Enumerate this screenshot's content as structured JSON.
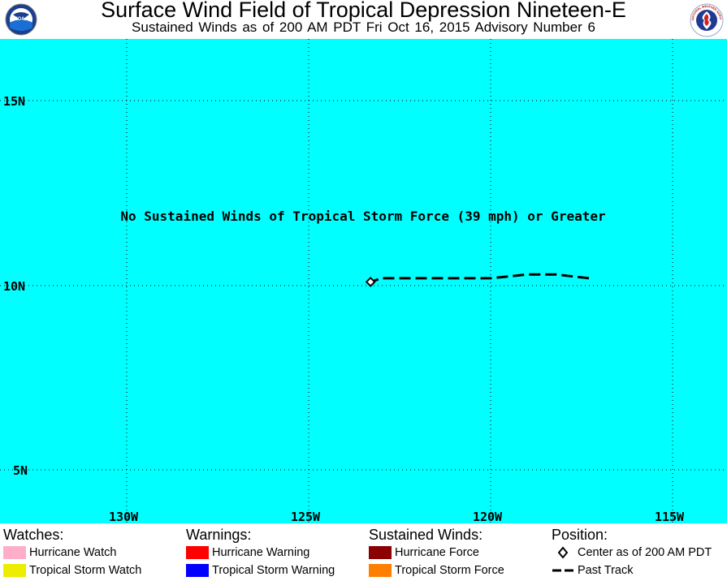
{
  "header": {
    "title": "Surface Wind Field of Tropical Depression Nineteen-E",
    "subtitle": "Sustained Winds as of 200 AM PDT Fri Oct 16, 2015   Advisory Number 6",
    "left_logo_text": "NOAA",
    "right_logo_text": "NATIONAL WEATHER SERVICE"
  },
  "map": {
    "background_color": "#00ffff",
    "latitude_labels": [
      "15N",
      "10N",
      "5N"
    ],
    "longitude_labels": [
      "130W",
      "125W",
      "120W",
      "115W"
    ],
    "notice": "No Sustained Winds of Tropical Storm Force (39 mph) or Greater",
    "storm_center": {
      "lon": -123.3,
      "lat": 10.1
    },
    "past_track": [
      {
        "lon": -117.3,
        "lat": 10.2
      },
      {
        "lon": -118.2,
        "lat": 10.3
      },
      {
        "lon": -119.0,
        "lat": 10.3
      },
      {
        "lon": -120.0,
        "lat": 10.2
      },
      {
        "lon": -121.0,
        "lat": 10.2
      },
      {
        "lon": -122.0,
        "lat": 10.2
      },
      {
        "lon": -123.0,
        "lat": 10.2
      },
      {
        "lon": -123.3,
        "lat": 10.1
      }
    ]
  },
  "legend": {
    "watches": {
      "heading": "Watches:",
      "items": [
        {
          "label": "Hurricane Watch",
          "color": "#ffaec9"
        },
        {
          "label": "Tropical Storm Watch",
          "color": "#eded00"
        }
      ]
    },
    "warnings": {
      "heading": "Warnings:",
      "items": [
        {
          "label": "Hurricane Warning",
          "color": "#ff0000"
        },
        {
          "label": "Tropical Storm Warning",
          "color": "#0000ff"
        }
      ]
    },
    "winds": {
      "heading": "Sustained Winds:",
      "items": [
        {
          "label": "Hurricane Force",
          "color": "#8b0000"
        },
        {
          "label": "Tropical Storm Force",
          "color": "#ff8000"
        }
      ]
    },
    "position": {
      "heading": "Position:",
      "center_label": "Center as of 200 AM PDT",
      "track_label": "Past Track"
    }
  }
}
